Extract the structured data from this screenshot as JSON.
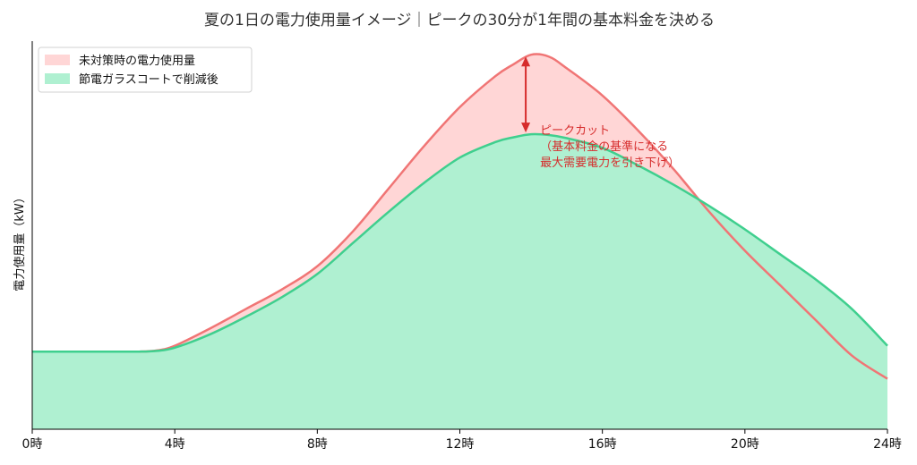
{
  "chart_data": {
    "type": "area",
    "title": "夏の1日の電力使用量イメージ｜ピークの30分が1年間の基本料金を決める",
    "xlabel": "",
    "ylabel": "電力使用量（kW）",
    "x_unit": "hour",
    "x_ticks": [
      0,
      4,
      8,
      12,
      16,
      20,
      24
    ],
    "x_tick_labels": [
      "0時",
      "4時",
      "8時",
      "12時",
      "16時",
      "20時",
      "24時"
    ],
    "xlim": [
      0,
      24
    ],
    "ylim": [
      0,
      100
    ],
    "y_ticks_shown": false,
    "grid": false,
    "legend_position": "top-left",
    "series": [
      {
        "name": "未対策時の電力使用量",
        "line_color": "#f07575",
        "fill_color": "#ffd6d6",
        "x": [
          0,
          1,
          2,
          3,
          3.5,
          4,
          5,
          6,
          7,
          8,
          9,
          10,
          11,
          12,
          13,
          13.5,
          14,
          14.5,
          15,
          16,
          17,
          18,
          19,
          20,
          21,
          22,
          23,
          24
        ],
        "y": [
          20,
          20,
          20,
          20,
          20.3,
          21.5,
          26,
          31,
          36,
          42,
          51,
          62,
          73,
          83,
          91,
          94,
          96.5,
          96,
          93,
          86,
          77,
          67,
          56,
          46,
          37,
          28,
          19,
          13
        ]
      },
      {
        "name": "節電ガラスコートで削減後",
        "line_color": "#3fcf8e",
        "fill_color": "#aff0d1",
        "x": [
          0,
          1,
          2,
          3,
          3.5,
          4,
          5,
          6,
          7,
          8,
          9,
          10,
          11,
          12,
          13,
          13.5,
          14,
          14.5,
          15,
          16,
          17,
          18,
          19,
          20,
          21,
          22,
          23,
          24
        ],
        "y": [
          20,
          20,
          20,
          20,
          20.2,
          21,
          24.5,
          29,
          34,
          40,
          48,
          56,
          63.5,
          70,
          74,
          75.2,
          76,
          75.8,
          75,
          72.5,
          68,
          63,
          57.5,
          51.5,
          45,
          38.5,
          31,
          21.5
        ]
      }
    ],
    "annotations": [
      {
        "type": "double-arrow",
        "color": "#d62c2c",
        "x": 14,
        "y_from": 76,
        "y_to": 96.5,
        "label_lines": [
          "ピークカット",
          "（基本料金の基準になる",
          "最大需要電力を引き下げ）"
        ]
      }
    ]
  }
}
